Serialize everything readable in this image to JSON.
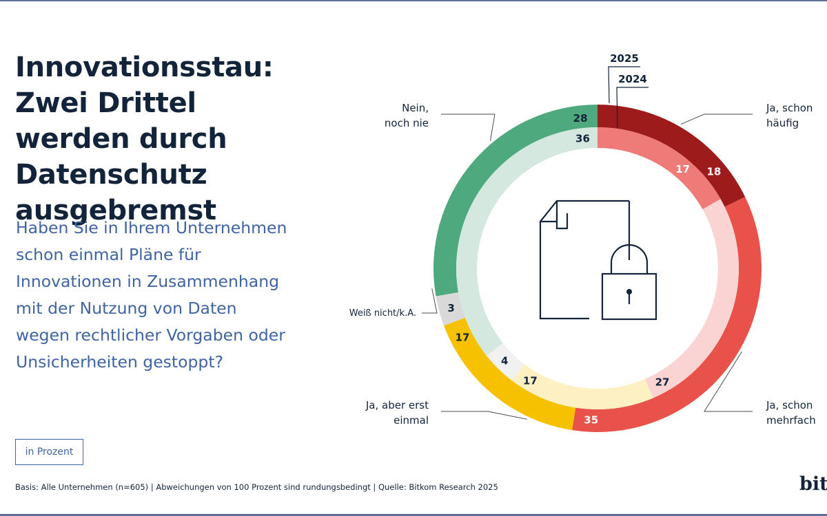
{
  "title": "Innovationsstau: Zwei Drittel werden durch Datenschutz ausgebremst",
  "question": "Haben Sie in Ihrem Unternehmen schon einmal Pläne für Innovationen in Zusammenhang mit der Nutzung von Daten wegen rechtlicher Vorgaben oder Unsicherheiten gestoppt?",
  "unit_note": "in Prozent",
  "footnote": "Basis: Alle Unternehmen (n=605) | Abweichungen von 100 Prozent sind rundungsbedingt | Quelle: Bitkom Research 2025",
  "logo": "bitkom",
  "icon": "document-lock-icon",
  "chart_data": {
    "type": "donut",
    "title": "",
    "legend": {
      "outer_ring": "2025",
      "inner_ring": "2024"
    },
    "categories": [
      {
        "label": "Ja, schon häufig",
        "label_lines": [
          "Ja, schon",
          "häufig"
        ]
      },
      {
        "label": "Ja, schon mehrfach",
        "label_lines": [
          "Ja, schon",
          "mehrfach"
        ]
      },
      {
        "label": "Ja, aber erst einmal",
        "label_lines": [
          "Ja, aber erst",
          "einmal"
        ]
      },
      {
        "label": "Weiß nicht/k.A.",
        "label_lines": [
          "Weiß nicht/k.A."
        ]
      },
      {
        "label": "Nein, noch nie",
        "label_lines": [
          "Nein,",
          "noch nie"
        ]
      }
    ],
    "series": [
      {
        "name": "2025",
        "values": [
          18,
          35,
          17,
          3,
          28
        ]
      },
      {
        "name": "2024",
        "values": [
          17,
          27,
          17,
          4,
          36
        ]
      }
    ],
    "colors": {
      "2025": [
        "#9e1b1b",
        "#e8524a",
        "#f6c200",
        "#d9d9d9",
        "#4eaa7e"
      ],
      "2024": [
        "#ef7b78",
        "#f9d4d2",
        "#fdf1c4",
        "#f1f1f1",
        "#d4e8e0"
      ],
      "labels_2025": [
        "#ffffff",
        "#ffffff",
        "#12233a",
        "#12233a",
        "#12233a"
      ],
      "labels_2024": [
        "#ffffff",
        "#12233a",
        "#12233a",
        "#12233a",
        "#12233a"
      ],
      "leader": "#4a4a4a"
    }
  }
}
